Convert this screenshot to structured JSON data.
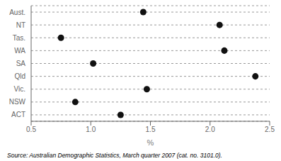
{
  "chart_data": {
    "type": "dot",
    "categories": [
      "ACT",
      "NSW",
      "Vic.",
      "Qld",
      "SA",
      "WA",
      "Tas.",
      "NT",
      "Aust."
    ],
    "values": [
      1.25,
      0.87,
      1.47,
      2.38,
      1.02,
      2.12,
      0.75,
      2.08,
      1.44
    ],
    "xlim": [
      0.5,
      2.5
    ],
    "xticks": [
      0.5,
      {
        "value": 1,
        "label": "1.0"
      },
      1.5,
      {
        "value": 2,
        "label": "2.0"
      },
      2.5
    ],
    "xlabel": "%",
    "annotations": [
      "Source: Australian Demographic Statistics, March quarter 2007 (cat.  no.  3101.0)."
    ],
    "color": "#111111",
    "marker": "circle",
    "grid": true
  }
}
